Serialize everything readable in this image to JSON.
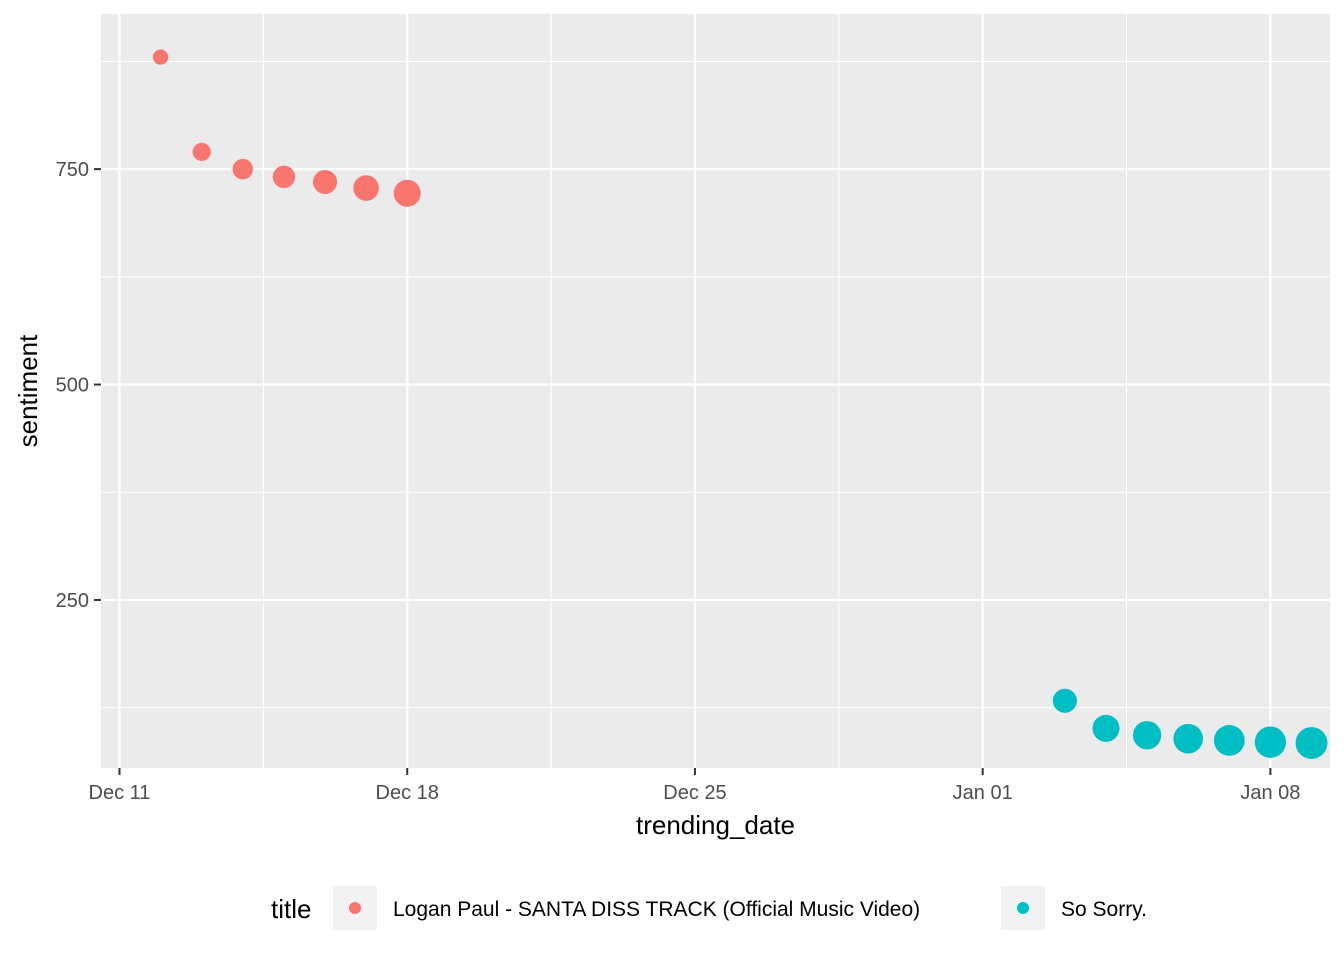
{
  "chart_data": {
    "type": "scatter",
    "xlabel": "trending_date",
    "ylabel": "sentiment",
    "x_ticks": [
      "Dec 11",
      "Dec 18",
      "Dec 25",
      "Jan 01",
      "Jan 08"
    ],
    "y_ticks": [
      "250",
      "500",
      "750"
    ],
    "ylim": [
      55,
      930
    ],
    "xlim": [
      "2017-12-10",
      "2018-01-10"
    ],
    "grid": true,
    "legend": {
      "title": "title",
      "position": "bottom"
    },
    "series": [
      {
        "name": "Logan Paul - SANTA DISS TRACK (Official Music Video)",
        "color": "#F8766D",
        "points": [
          {
            "x": "2017-12-12",
            "y": 880,
            "views": 1
          },
          {
            "x": "2017-12-13",
            "y": 770,
            "views": 2
          },
          {
            "x": "2017-12-14",
            "y": 750,
            "views": 3
          },
          {
            "x": "2017-12-15",
            "y": 741,
            "views": 4
          },
          {
            "x": "2017-12-16",
            "y": 735,
            "views": 5
          },
          {
            "x": "2017-12-17",
            "y": 728,
            "views": 6
          },
          {
            "x": "2017-12-18",
            "y": 722,
            "views": 7
          }
        ]
      },
      {
        "name": "So Sorry.",
        "color": "#00BFC4",
        "points": [
          {
            "x": "2018-01-03",
            "y": 133,
            "views": 5
          },
          {
            "x": "2018-01-04",
            "y": 101,
            "views": 7
          },
          {
            "x": "2018-01-05",
            "y": 93,
            "views": 8
          },
          {
            "x": "2018-01-06",
            "y": 89,
            "views": 9
          },
          {
            "x": "2018-01-07",
            "y": 87,
            "views": 10
          },
          {
            "x": "2018-01-08",
            "y": 85,
            "views": 10.5
          },
          {
            "x": "2018-01-09",
            "y": 84,
            "views": 11
          }
        ]
      }
    ]
  }
}
